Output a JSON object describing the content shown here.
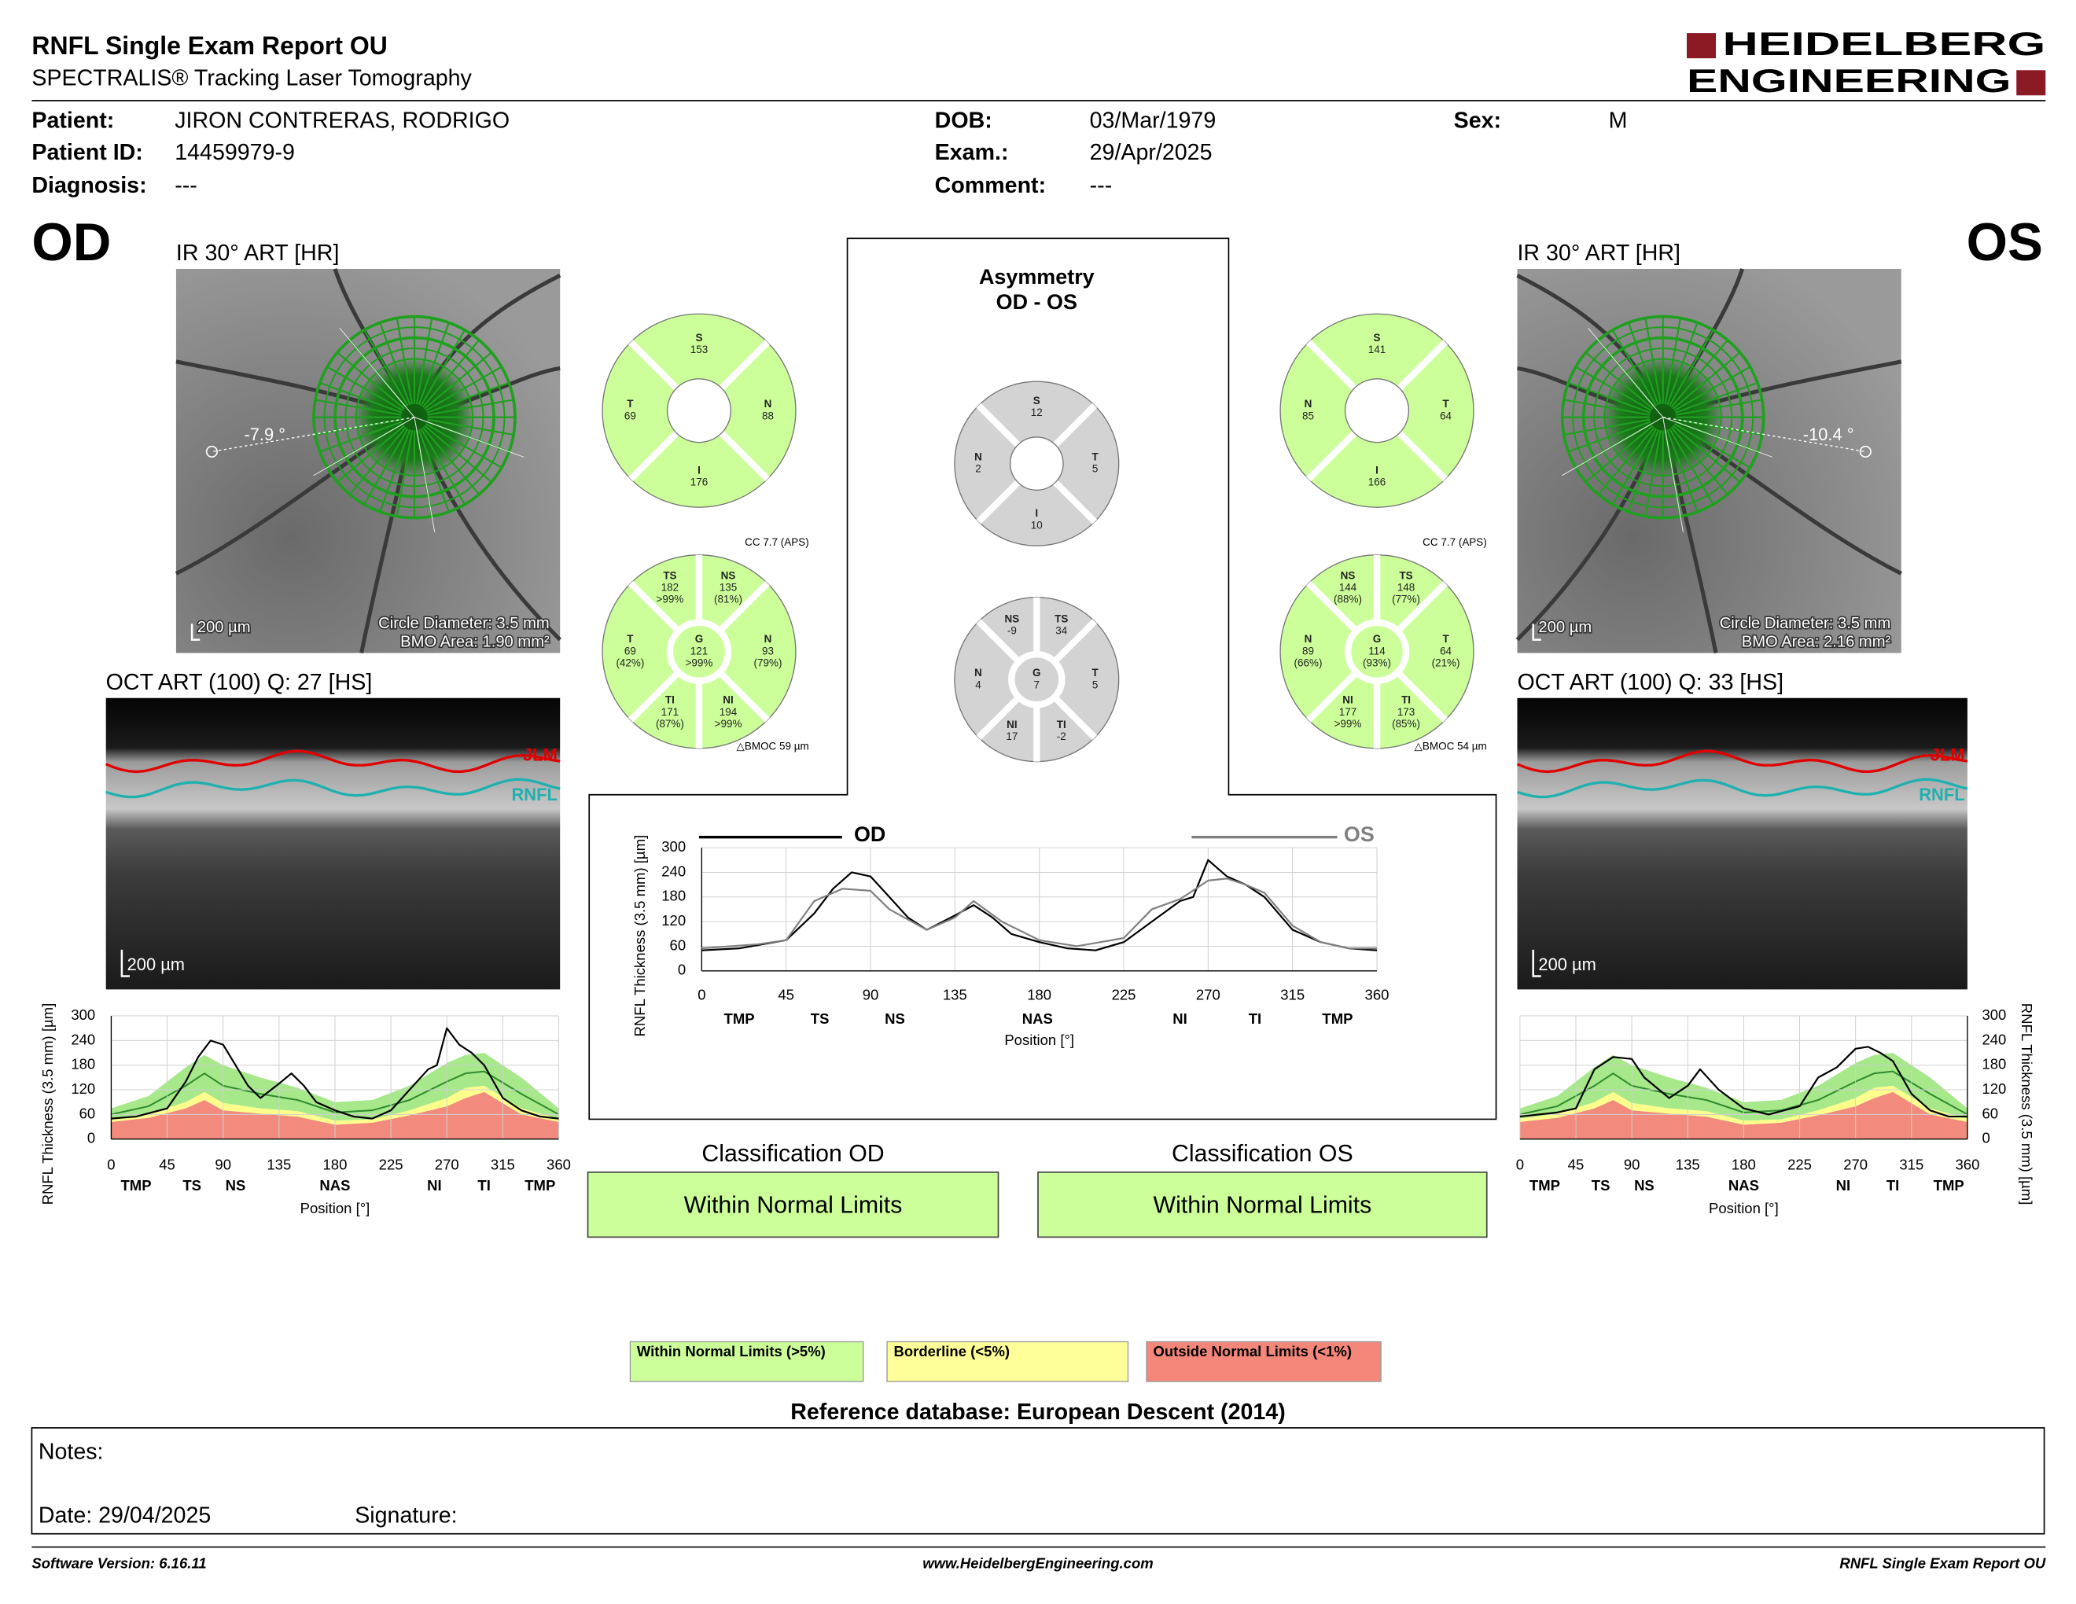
{
  "header": {
    "title": "RNFL Single Exam Report OU",
    "subtitle": "SPECTRALIS® Tracking Laser Tomography",
    "logo": [
      "HEIDELBERG",
      "ENGINEERING"
    ]
  },
  "patient": [
    {
      "label": "Patient:",
      "value": "JIRON CONTRERAS, RODRIGO"
    },
    {
      "label": "Patient ID:",
      "value": "14459979-9"
    },
    {
      "label": "Diagnosis:",
      "value": "---"
    },
    {
      "label": "DOB:",
      "value": "03/Mar/1979"
    },
    {
      "label": "Exam.:",
      "value": "29/Apr/2025"
    },
    {
      "label": "Comment:",
      "value": "---"
    },
    {
      "label": "Sex:",
      "value": "M"
    }
  ],
  "eyes": [
    {
      "eye": "OD",
      "color": "#ccff99",
      "fundus": {
        "title": "IR 30° ART [HR]",
        "angle": "-7.9 °",
        "scale": "200 µm",
        "circle": "Circle Diameter: 3.5 mm",
        "bmo": "BMO Area: 1.90 mm²"
      },
      "oct": {
        "title": "OCT ART (100) Q: 27 [HS]",
        "layers": [
          "JLM",
          "RNFL"
        ],
        "scale": "200 µm"
      },
      "quadrants": [
        {
          "label": "S",
          "value": 153
        },
        {
          "label": "T",
          "value": 69
        },
        {
          "label": "N",
          "value": 88
        },
        {
          "label": "I",
          "value": 176
        }
      ],
      "cc": "CC 7.7 (APS)",
      "sectors": [
        {
          "label": "TS",
          "value": 182,
          "pct": ">99%"
        },
        {
          "label": "NS",
          "value": 135,
          "pct": "(81%)"
        },
        {
          "label": "T",
          "value": 69,
          "pct": "(42%)"
        },
        {
          "label": "G",
          "value": 121,
          "pct": ">99%"
        },
        {
          "label": "N",
          "value": 93,
          "pct": "(79%)"
        },
        {
          "label": "TI",
          "value": 171,
          "pct": "(87%)"
        },
        {
          "label": "NI",
          "value": 194,
          "pct": ">99%"
        }
      ],
      "bmoc": "△BMOC 59 µm",
      "classification": {
        "title": "Classification OD",
        "result": "Within Normal Limits",
        "color": "#ccff99"
      }
    },
    {
      "eye": "OS",
      "color": "#ccff99",
      "fundus": {
        "title": "IR 30° ART [HR]",
        "angle": "-10.4 °",
        "scale": "200 µm",
        "circle": "Circle Diameter: 3.5 mm",
        "bmo": "BMO Area: 2.16 mm²"
      },
      "oct": {
        "title": "OCT ART (100) Q: 33 [HS]",
        "layers": [
          "JLM",
          "RNFL"
        ],
        "scale": "200 µm"
      },
      "quadrants": [
        {
          "label": "S",
          "value": 141
        },
        {
          "label": "N",
          "value": 85
        },
        {
          "label": "T",
          "value": 64
        },
        {
          "label": "I",
          "value": 166
        }
      ],
      "cc": "CC 7.7 (APS)",
      "sectors": [
        {
          "label": "NS",
          "value": 144,
          "pct": "(88%)"
        },
        {
          "label": "TS",
          "value": 148,
          "pct": "(77%)"
        },
        {
          "label": "N",
          "value": 89,
          "pct": "(66%)"
        },
        {
          "label": "G",
          "value": 114,
          "pct": "(93%)"
        },
        {
          "label": "T",
          "value": 64,
          "pct": "(21%)"
        },
        {
          "label": "NI",
          "value": 177,
          "pct": ">99%"
        },
        {
          "label": "TI",
          "value": 173,
          "pct": "(85%)"
        }
      ],
      "bmoc": "△BMOC 54 µm",
      "classification": {
        "title": "Classification OS",
        "result": "Within Normal Limits",
        "color": "#ccff99"
      }
    }
  ],
  "asymmetry": {
    "title": "Asymmetry",
    "subtitle": "OD - OS",
    "color": "#d3d3d3",
    "quadrants": [
      {
        "label": "S",
        "value": 12
      },
      {
        "label": "N",
        "value": 2
      },
      {
        "label": "T",
        "value": 5
      },
      {
        "label": "I",
        "value": 10
      }
    ],
    "sectors": [
      {
        "label": "NS",
        "value": -9
      },
      {
        "label": "TS",
        "value": 34
      },
      {
        "label": "N",
        "value": 4
      },
      {
        "label": "G",
        "value": 7
      },
      {
        "label": "T",
        "value": 5
      },
      {
        "label": "NI",
        "value": 17
      },
      {
        "label": "TI",
        "value": -2
      }
    ]
  },
  "chart_data": [
    {
      "type": "line",
      "y_title": "RNFL Thickness (3.5 mm) [µm]",
      "x_title": "Position [°]",
      "xlim": [
        0,
        360
      ],
      "ylim": [
        0,
        300
      ],
      "xticks": [
        0,
        45,
        90,
        135,
        180,
        225,
        270,
        315,
        360
      ],
      "yticks": [
        0,
        60,
        120,
        180,
        240,
        300
      ],
      "grid": true,
      "y_axis_side": "left",
      "sector_ticks": [
        {
          "value": 20,
          "label": "TMP"
        },
        {
          "value": 65,
          "label": "TS"
        },
        {
          "value": 100,
          "label": "NS"
        },
        {
          "value": 180,
          "label": "NAS"
        },
        {
          "value": 260,
          "label": "NI"
        },
        {
          "value": 300,
          "label": "TI"
        },
        {
          "value": 345,
          "label": "TMP"
        }
      ],
      "normative": {
        "x": [
          0,
          30,
          60,
          75,
          90,
          120,
          150,
          180,
          210,
          240,
          270,
          285,
          300,
          330,
          360
        ],
        "p1": [
          42,
          52,
          75,
          95,
          70,
          62,
          55,
          35,
          40,
          58,
          80,
          100,
          115,
          60,
          42
        ],
        "p5": [
          50,
          62,
          90,
          115,
          88,
          75,
          68,
          45,
          48,
          70,
          100,
          125,
          130,
          75,
          50
        ],
        "p95": [
          75,
          105,
          175,
          205,
          180,
          150,
          125,
          90,
          95,
          130,
          185,
          205,
          210,
          150,
          75
        ],
        "mean": [
          60,
          80,
          130,
          160,
          130,
          110,
          95,
          65,
          70,
          95,
          140,
          160,
          165,
          110,
          60
        ],
        "colors": {
          "p1": "#f28b7d",
          "p5": "#ffff8c",
          "p95": "#a6e88a",
          "mean": "#2e8b2e"
        }
      },
      "series": [
        {
          "color": "#000000",
          "x": [
            0,
            20,
            45,
            60,
            70,
            80,
            90,
            100,
            110,
            120,
            135,
            145,
            155,
            165,
            180,
            195,
            210,
            225,
            240,
            255,
            262,
            270,
            280,
            290,
            300,
            315,
            330,
            345,
            360
          ],
          "values": [
            50,
            55,
            75,
            140,
            200,
            240,
            230,
            180,
            130,
            100,
            135,
            160,
            130,
            90,
            70,
            55,
            50,
            70,
            120,
            170,
            180,
            270,
            230,
            210,
            180,
            100,
            70,
            55,
            50
          ]
        }
      ]
    },
    {
      "type": "line",
      "y_title": "RNFL Thickness (3.5 mm) [µm]",
      "x_title": "Position [°]",
      "xlim": [
        0,
        360
      ],
      "ylim": [
        0,
        300
      ],
      "xticks": [
        0,
        45,
        90,
        135,
        180,
        225,
        270,
        315,
        360
      ],
      "yticks": [
        0,
        60,
        120,
        180,
        240,
        300
      ],
      "grid": true,
      "y_axis_side": "left",
      "legend": "top",
      "sector_ticks": [
        {
          "value": 20,
          "label": "TMP"
        },
        {
          "value": 63,
          "label": "TS"
        },
        {
          "value": 103,
          "label": "NS"
        },
        {
          "value": 179,
          "label": "NAS"
        },
        {
          "value": 255,
          "label": "NI"
        },
        {
          "value": 295,
          "label": "TI"
        },
        {
          "value": 339,
          "label": "TMP"
        }
      ],
      "series": [
        {
          "name": "OD",
          "color": "#000000",
          "x": [
            0,
            20,
            45,
            60,
            70,
            80,
            90,
            100,
            110,
            120,
            135,
            145,
            155,
            165,
            180,
            195,
            210,
            225,
            240,
            255,
            262,
            270,
            280,
            290,
            300,
            315,
            330,
            345,
            360
          ],
          "values": [
            50,
            55,
            75,
            140,
            200,
            240,
            230,
            180,
            130,
            100,
            135,
            160,
            130,
            90,
            70,
            55,
            50,
            70,
            120,
            170,
            180,
            270,
            230,
            210,
            180,
            100,
            70,
            55,
            50
          ]
        },
        {
          "name": "OS",
          "color": "#808080",
          "x": [
            0,
            30,
            45,
            60,
            75,
            90,
            100,
            120,
            135,
            145,
            160,
            180,
            200,
            225,
            240,
            255,
            270,
            280,
            290,
            300,
            315,
            330,
            345,
            360
          ],
          "values": [
            55,
            65,
            75,
            170,
            200,
            195,
            150,
            100,
            130,
            170,
            120,
            75,
            60,
            80,
            150,
            175,
            220,
            225,
            210,
            190,
            110,
            70,
            55,
            55
          ]
        }
      ]
    },
    {
      "type": "line",
      "y_title": "RNFL Thickness (3.5 mm) [µm]",
      "x_title": "Position [°]",
      "xlim": [
        0,
        360
      ],
      "ylim": [
        0,
        300
      ],
      "xticks": [
        0,
        45,
        90,
        135,
        180,
        225,
        270,
        315,
        360
      ],
      "yticks": [
        0,
        60,
        120,
        180,
        240,
        300
      ],
      "grid": true,
      "y_axis_side": "right",
      "sector_ticks": [
        {
          "value": 20,
          "label": "TMP"
        },
        {
          "value": 65,
          "label": "TS"
        },
        {
          "value": 100,
          "label": "NS"
        },
        {
          "value": 180,
          "label": "NAS"
        },
        {
          "value": 260,
          "label": "NI"
        },
        {
          "value": 300,
          "label": "TI"
        },
        {
          "value": 345,
          "label": "TMP"
        }
      ],
      "normative": {
        "x": [
          0,
          30,
          60,
          75,
          90,
          120,
          150,
          180,
          210,
          240,
          270,
          285,
          300,
          330,
          360
        ],
        "p1": [
          42,
          52,
          75,
          95,
          70,
          62,
          55,
          35,
          40,
          58,
          80,
          100,
          115,
          60,
          42
        ],
        "p5": [
          50,
          62,
          90,
          115,
          88,
          75,
          68,
          45,
          48,
          70,
          100,
          125,
          130,
          75,
          50
        ],
        "p95": [
          75,
          105,
          175,
          205,
          180,
          150,
          125,
          90,
          95,
          130,
          185,
          205,
          210,
          150,
          75
        ],
        "mean": [
          60,
          80,
          130,
          160,
          130,
          110,
          95,
          65,
          70,
          95,
          140,
          160,
          165,
          110,
          60
        ],
        "colors": {
          "p1": "#f28b7d",
          "p5": "#ffff8c",
          "p95": "#a6e88a",
          "mean": "#2e8b2e"
        }
      },
      "series": [
        {
          "color": "#000000",
          "x": [
            0,
            30,
            45,
            60,
            75,
            90,
            100,
            120,
            135,
            145,
            160,
            180,
            200,
            225,
            240,
            255,
            270,
            280,
            290,
            300,
            315,
            330,
            345,
            360
          ],
          "values": [
            55,
            65,
            75,
            170,
            200,
            195,
            150,
            100,
            130,
            170,
            120,
            75,
            60,
            80,
            150,
            175,
            220,
            225,
            210,
            190,
            110,
            70,
            55,
            55
          ]
        }
      ]
    }
  ],
  "legend": [
    {
      "label": "Within Normal Limits (>5%)",
      "color": "#ccff99"
    },
    {
      "label": "Borderline (<5%)",
      "color": "#ffff99"
    },
    {
      "label": "Outside Normal Limits (<1%)",
      "color": "#f4877a"
    }
  ],
  "reference": "Reference database: European Descent (2014)",
  "notes": {
    "label": "Notes:",
    "date": "Date: 29/04/2025",
    "signature": "Signature:"
  },
  "footer": [
    "Software Version: 6.16.11",
    "www.HeidelbergEngineering.com",
    "RNFL Single Exam Report OU"
  ]
}
